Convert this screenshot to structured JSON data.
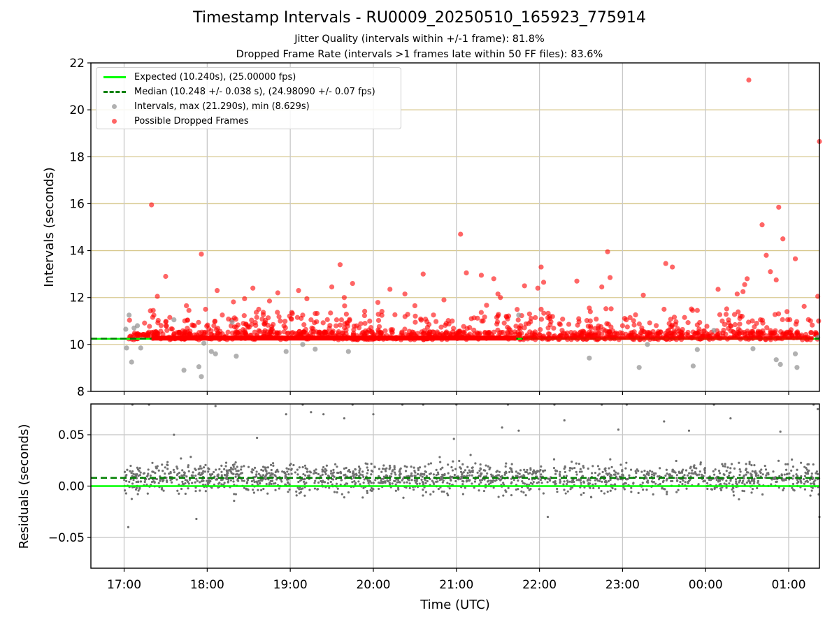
{
  "figure": {
    "title": "Timestamp Intervals - RU0009_20250510_165923_775914",
    "subtitle_jitter": "Jitter Quality (intervals within +/-1 frame): 81.8%",
    "subtitle_dropped": "Dropped Frame Rate (intervals >1 frames late within 50 FF files): 83.6%"
  },
  "chart_data": [
    {
      "type": "scatter",
      "panel": "intervals",
      "xlabel": "",
      "ylabel": "Intervals (seconds)",
      "xlim_hours": [
        16.6,
        25.37
      ],
      "ylim": [
        8,
        22
      ],
      "yticks": [
        8,
        10,
        12,
        14,
        16,
        18,
        20,
        22
      ],
      "grid": "horizontal and vertical",
      "legend_position": "upper-left",
      "legend": [
        "Expected (10.240s), (25.00000 fps)",
        "Median (10.248 +/- 0.038 s), (24.98090 +/- 0.07 fps)",
        "Intervals, max (21.290s), min (8.629s)",
        "Possible Dropped Frames"
      ],
      "reference_lines": {
        "expected": 10.24,
        "median": 10.248
      },
      "colors": {
        "expected": "#00ff00",
        "median": "#008000",
        "intervals": "#909090",
        "dropped": "#ff0000"
      },
      "series": [
        {
          "name": "Intervals, max (21.290s), min (8.629s)",
          "x_hours": [
            17.02,
            17.06,
            17.09,
            17.12,
            17.16,
            17.2,
            17.03,
            17.6,
            17.72,
            17.9,
            17.93,
            17.96,
            18.05,
            18.1,
            18.3,
            18.35,
            18.95,
            19.15,
            19.3,
            19.7,
            21.75,
            22.6,
            23.2,
            23.3,
            23.85,
            23.9,
            24.1,
            24.57,
            24.85,
            24.9,
            25.08,
            25.1,
            25.35
          ],
          "y": [
            10.65,
            11.25,
            9.25,
            10.7,
            10.8,
            9.85,
            9.85,
            11.05,
            8.9,
            9.05,
            8.63,
            10.05,
            9.7,
            9.6,
            10.95,
            9.5,
            9.7,
            10.0,
            9.8,
            9.7,
            11.25,
            9.42,
            9.02,
            10.0,
            9.08,
            9.78,
            10.6,
            9.82,
            9.35,
            9.15,
            9.6,
            9.02,
            10.3
          ]
        },
        {
          "name": "Possible Dropped Frames",
          "x_hours": [
            17.33,
            17.35,
            17.4,
            17.5,
            17.55,
            17.75,
            17.78,
            17.93,
            17.98,
            18.08,
            18.12,
            18.45,
            18.75,
            18.85,
            18.88,
            19.1,
            19.15,
            19.25,
            19.5,
            19.6,
            19.65,
            19.75,
            20.2,
            20.38,
            20.5,
            20.6,
            20.67,
            20.85,
            21.05,
            21.12,
            21.18,
            21.3,
            21.45,
            21.5,
            21.53,
            21.6,
            21.82,
            21.98,
            22.02,
            22.05,
            22.45,
            22.75,
            22.82,
            22.85,
            23.0,
            23.25,
            23.5,
            23.52,
            23.6,
            23.9,
            24.15,
            24.38,
            24.45,
            24.47,
            24.5,
            24.52,
            24.68,
            24.73,
            24.78,
            24.85,
            24.93,
            24.98,
            25.08,
            25.37,
            25.35,
            25.36,
            24.88,
            24.3,
            24.2,
            19.9,
            18.62,
            22.6,
            22.25,
            20.95,
            21.88,
            19.2,
            18.55
          ],
          "y": [
            15.95,
            11.45,
            12.05,
            12.9,
            11.15,
            11.65,
            11.45,
            13.85,
            11.5,
            10.8,
            12.3,
            11.95,
            11.85,
            12.2,
            11.0,
            12.3,
            11.25,
            11.05,
            12.45,
            13.4,
            12.0,
            12.6,
            12.35,
            12.15,
            11.65,
            13.0,
            10.85,
            11.9,
            14.7,
            13.05,
            11.1,
            12.95,
            12.8,
            12.15,
            12.0,
            11.2,
            12.5,
            12.4,
            13.3,
            12.65,
            12.7,
            12.45,
            13.95,
            12.85,
            10.8,
            12.1,
            11.5,
            13.45,
            13.3,
            11.45,
            12.35,
            12.15,
            12.25,
            12.55,
            12.8,
            21.27,
            15.1,
            13.8,
            13.1,
            12.75,
            14.5,
            11.4,
            13.65,
            18.65,
            12.05,
            11.0,
            15.85,
            10.8,
            11.0,
            10.9,
            11.5,
            11.55,
            10.85,
            11.0,
            11.3,
            11.95,
            12.4
          ]
        }
      ]
    },
    {
      "type": "scatter",
      "panel": "residuals",
      "xlabel": "Time (UTC)",
      "ylabel": "Residuals (seconds)",
      "xticks": [
        "17:00",
        "18:00",
        "19:00",
        "20:00",
        "21:00",
        "22:00",
        "23:00",
        "00:00",
        "01:00"
      ],
      "xlim_hours": [
        16.6,
        25.37
      ],
      "ylim": [
        -0.08,
        0.08
      ],
      "ytick_labels": [
        "−0.05",
        "0.00",
        "0.05"
      ],
      "yticks": [
        -0.05,
        0.0,
        0.05
      ],
      "grid": "horizontal and vertical",
      "reference_lines": {
        "expected": 0.0,
        "median": 0.008
      },
      "colors": {
        "expected": "#00ff00",
        "median": "#008000",
        "residuals": "#707070"
      },
      "series": [
        {
          "name": "",
          "x_hours": [
            17.05,
            17.1,
            17.3,
            17.6,
            17.87,
            18.1,
            18.6,
            18.95,
            19.15,
            19.25,
            19.4,
            19.65,
            19.75,
            20.0,
            20.35,
            20.6,
            20.97,
            21.0,
            21.55,
            21.62,
            21.75,
            22.1,
            22.18,
            22.3,
            22.75,
            22.95,
            23.05,
            23.5,
            23.8,
            24.1,
            24.3,
            24.9,
            25.3,
            25.35,
            25.37
          ],
          "y": [
            -0.04,
            0.08,
            0.08,
            0.05,
            -0.032,
            0.078,
            0.047,
            0.07,
            0.08,
            0.072,
            0.07,
            0.066,
            0.08,
            0.07,
            0.08,
            0.08,
            0.046,
            0.08,
            0.057,
            0.08,
            0.054,
            -0.03,
            0.08,
            0.064,
            0.08,
            0.055,
            0.08,
            0.063,
            0.054,
            0.08,
            0.066,
            0.053,
            0.08,
            0.075,
            -0.03
          ]
        }
      ]
    }
  ]
}
